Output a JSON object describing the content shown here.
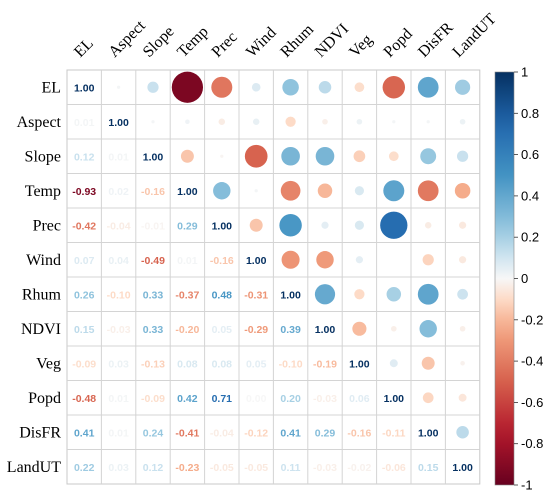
{
  "chart_data": {
    "type": "heatmap",
    "variables": [
      "EL",
      "Aspect",
      "Slope",
      "Temp",
      "Prec",
      "Wind",
      "Rhum",
      "NDVI",
      "Veg",
      "Popd",
      "DisFR",
      "LandUT"
    ],
    "matrix": [
      [
        1.0,
        0.01,
        0.12,
        -0.93,
        -0.42,
        0.07,
        0.26,
        0.15,
        -0.09,
        -0.48,
        0.41,
        0.22
      ],
      [
        0.01,
        1.0,
        0.01,
        0.02,
        -0.04,
        0.04,
        -0.1,
        -0.03,
        0.03,
        0.01,
        0.01,
        0.03
      ],
      [
        0.12,
        0.01,
        1.0,
        -0.16,
        -0.01,
        -0.49,
        0.33,
        0.33,
        -0.13,
        -0.09,
        0.24,
        0.12
      ],
      [
        -0.93,
        0.02,
        -0.16,
        1.0,
        0.29,
        0.01,
        -0.37,
        -0.2,
        0.08,
        0.42,
        -0.41,
        -0.23
      ],
      [
        -0.42,
        -0.04,
        -0.01,
        0.29,
        1.0,
        -0.16,
        0.48,
        0.05,
        0.08,
        0.71,
        -0.04,
        -0.05
      ],
      [
        0.07,
        0.04,
        -0.49,
        0.01,
        -0.16,
        1.0,
        -0.31,
        -0.29,
        0.05,
        0.0,
        -0.12,
        -0.05
      ],
      [
        0.26,
        -0.1,
        0.33,
        -0.37,
        0.48,
        -0.31,
        1.0,
        0.39,
        -0.1,
        0.2,
        0.41,
        0.11
      ],
      [
        0.15,
        -0.03,
        0.33,
        -0.2,
        0.05,
        -0.29,
        0.39,
        1.0,
        -0.19,
        -0.03,
        0.29,
        -0.03
      ],
      [
        -0.09,
        0.03,
        -0.13,
        0.08,
        0.08,
        0.05,
        -0.1,
        -0.19,
        1.0,
        0.06,
        -0.16,
        -0.02
      ],
      [
        -0.48,
        0.01,
        -0.09,
        0.42,
        0.71,
        0.0,
        0.2,
        -0.03,
        0.06,
        1.0,
        -0.11,
        -0.06
      ],
      [
        0.41,
        0.01,
        0.24,
        -0.41,
        -0.04,
        -0.12,
        0.41,
        0.29,
        -0.16,
        -0.11,
        1.0,
        0.15
      ],
      [
        0.22,
        0.03,
        0.12,
        -0.23,
        -0.05,
        -0.05,
        0.11,
        -0.03,
        -0.02,
        -0.06,
        0.15,
        1.0
      ]
    ],
    "lower_triangle": "numbers",
    "upper_triangle": "circles",
    "color_range": [
      -1,
      1
    ],
    "colorbar_ticks": [
      "1",
      "0.8",
      "0.6",
      "0.4",
      "0.2",
      "0",
      "-0.2",
      "-0.4",
      "-0.6",
      "-0.8",
      "-1"
    ],
    "colors": {
      "negative": "#67001F",
      "neutral": "#F7F7F7",
      "positive": "#053061"
    }
  }
}
